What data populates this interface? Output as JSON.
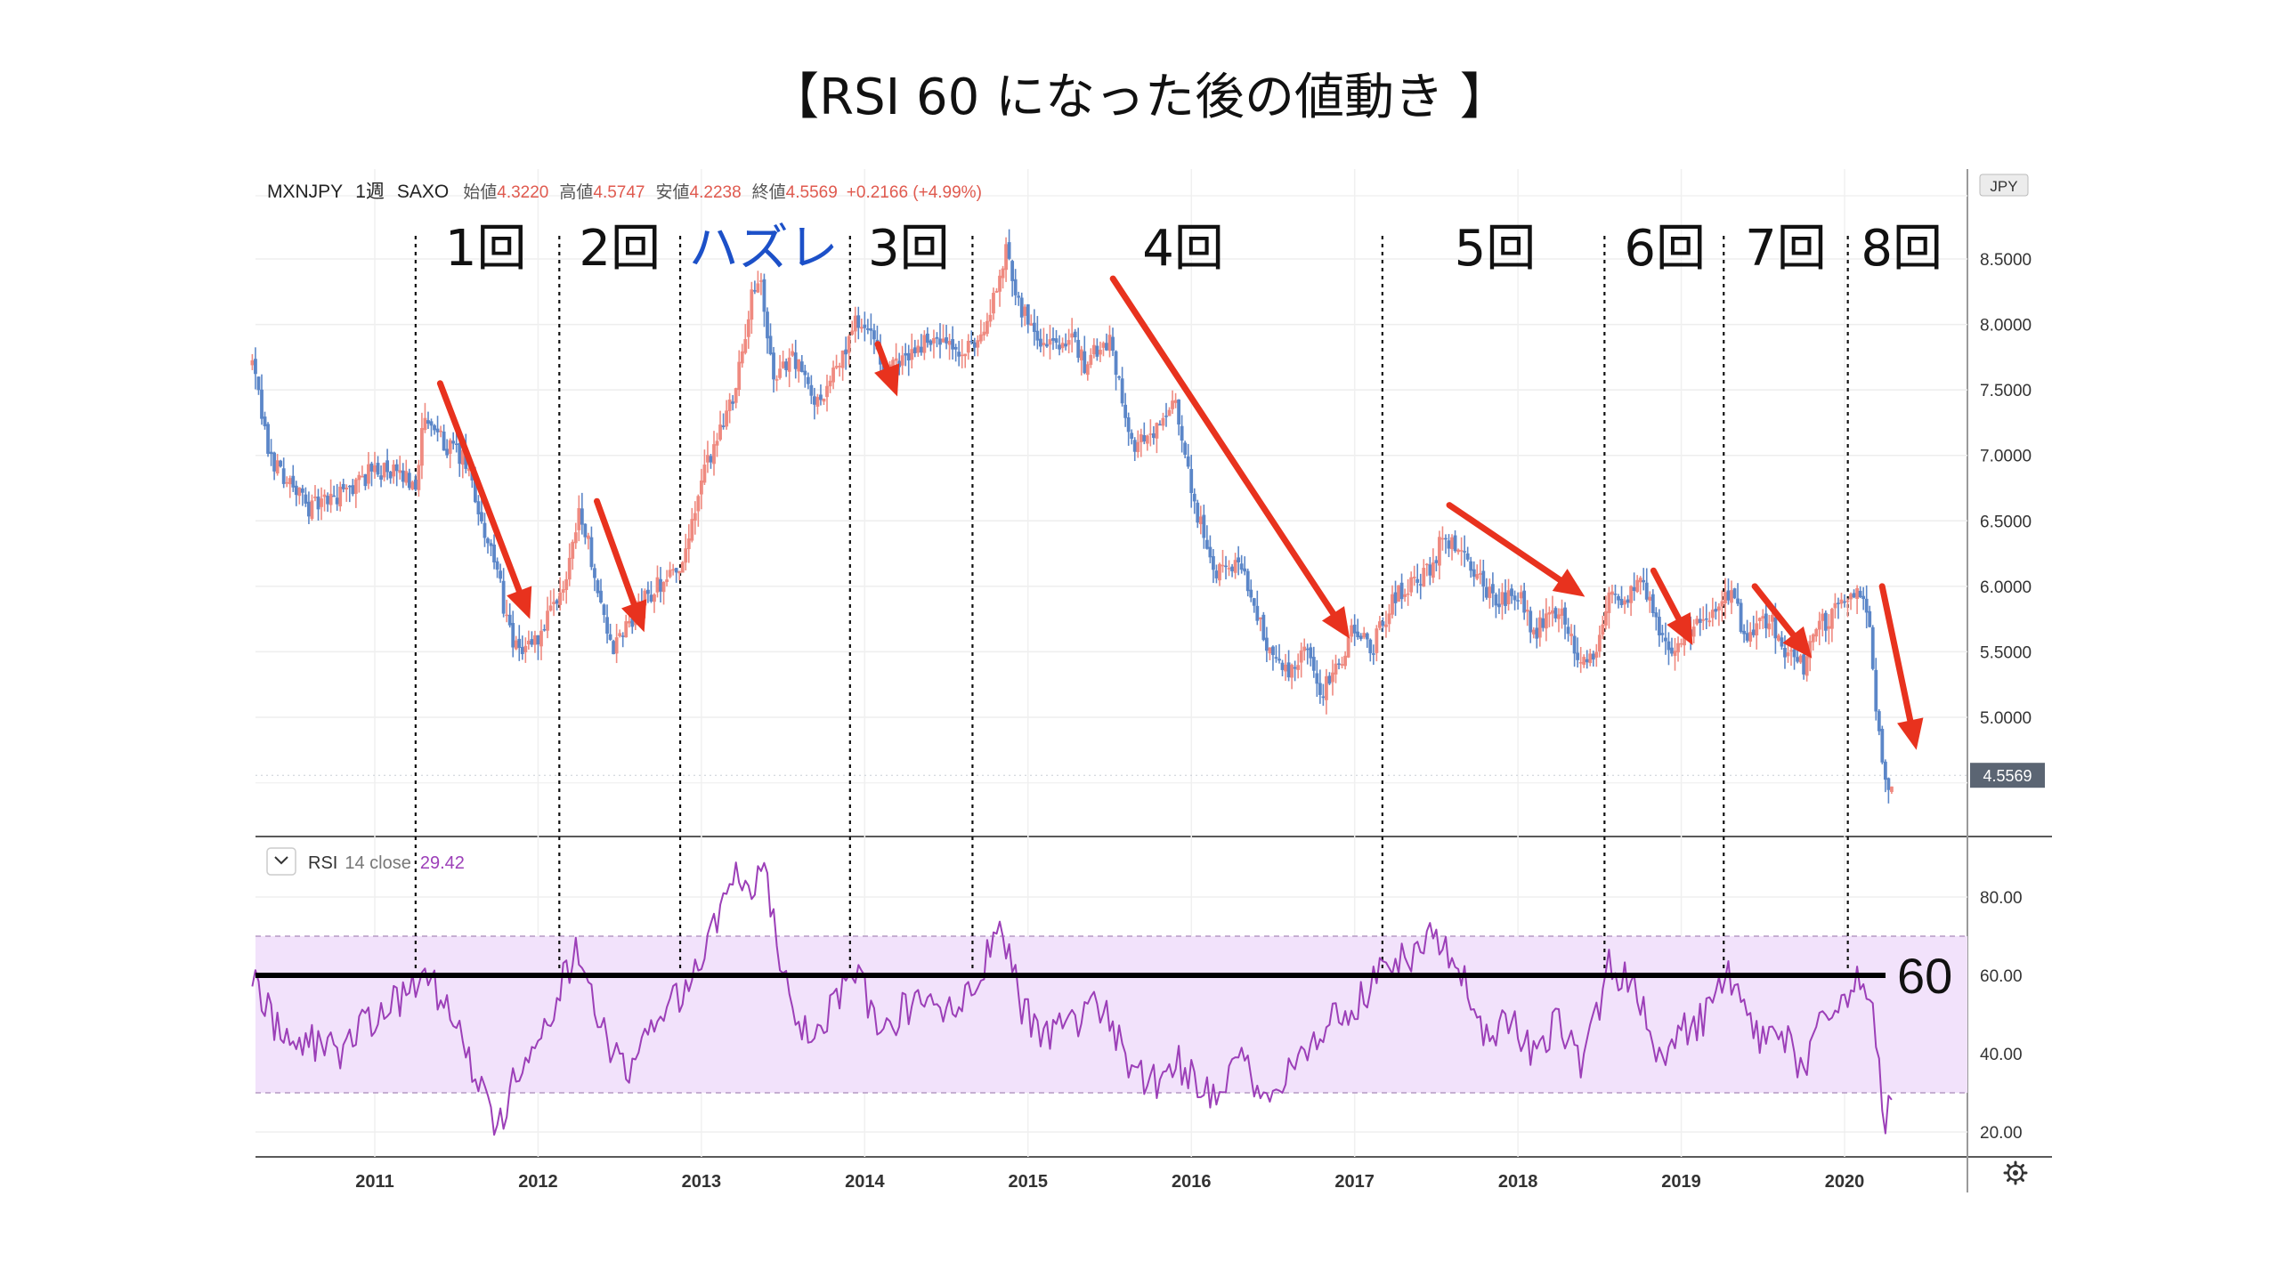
{
  "page_title": "【RSI 60 になった後の値動き 】",
  "header": {
    "symbol": "MXNJPY",
    "interval": "1週",
    "source": "SAXO",
    "open_label": "始値",
    "open": "4.3220",
    "high_label": "高値",
    "high": "4.5747",
    "low_label": "安値",
    "low": "4.2238",
    "close_label": "終値",
    "close": "4.5569",
    "change": "+0.2166 (+4.99%)"
  },
  "currency_badge": "JPY",
  "last_price_tag": "4.5569",
  "rsi_header": {
    "name": "RSI",
    "params": "14 close",
    "value": "29.42"
  },
  "line_label_60": "60",
  "colors": {
    "up": "#ef8a80",
    "down": "#5b86c8",
    "rsi": "#9c3fb8",
    "band": "#f2e2fb",
    "arrow": "#e8321e",
    "miss_label": "#1c50c8"
  },
  "chart_data": {
    "type": "candlestick",
    "x_ticks": [
      "2011",
      "2012",
      "2013",
      "2014",
      "2015",
      "2016",
      "2017",
      "2018",
      "2019",
      "2020"
    ],
    "y_ticks_price": [
      "5.0000",
      "5.5000",
      "6.0000",
      "6.5000",
      "7.0000",
      "7.5000",
      "8.0000",
      "8.5000"
    ],
    "y_ticks_rsi": [
      "20.00",
      "40.00",
      "60.00",
      "80.00"
    ],
    "price_range": [
      4.2,
      8.65
    ],
    "rsi_range": [
      16,
      90
    ],
    "rsi_band": [
      30,
      70
    ],
    "rsi_threshold": 60,
    "price_path": [
      [
        2010.25,
        7.7
      ],
      [
        2010.35,
        7.0
      ],
      [
        2010.6,
        6.6
      ],
      [
        2010.8,
        6.7
      ],
      [
        2011.0,
        6.9
      ],
      [
        2011.25,
        6.8
      ],
      [
        2011.3,
        7.25
      ],
      [
        2011.55,
        6.95
      ],
      [
        2011.75,
        6.1
      ],
      [
        2011.85,
        5.5
      ],
      [
        2012.0,
        5.6
      ],
      [
        2012.15,
        5.95
      ],
      [
        2012.25,
        6.6
      ],
      [
        2012.35,
        6.1
      ],
      [
        2012.45,
        5.5
      ],
      [
        2012.65,
        5.9
      ],
      [
        2012.8,
        6.1
      ],
      [
        2012.9,
        6.2
      ],
      [
        2013.0,
        6.8
      ],
      [
        2013.2,
        7.5
      ],
      [
        2013.3,
        8.15
      ],
      [
        2013.35,
        8.4
      ],
      [
        2013.45,
        7.5
      ],
      [
        2013.55,
        7.8
      ],
      [
        2013.7,
        7.4
      ],
      [
        2013.85,
        7.7
      ],
      [
        2013.95,
        8.05
      ],
      [
        2014.05,
        7.9
      ],
      [
        2014.1,
        7.6
      ],
      [
        2014.2,
        7.7
      ],
      [
        2014.4,
        7.9
      ],
      [
        2014.6,
        7.75
      ],
      [
        2014.7,
        7.9
      ],
      [
        2014.8,
        8.2
      ],
      [
        2014.87,
        8.6
      ],
      [
        2014.95,
        8.15
      ],
      [
        2015.1,
        7.85
      ],
      [
        2015.25,
        7.9
      ],
      [
        2015.35,
        7.7
      ],
      [
        2015.5,
        7.9
      ],
      [
        2015.65,
        7.05
      ],
      [
        2015.8,
        7.2
      ],
      [
        2015.9,
        7.4
      ],
      [
        2016.0,
        6.7
      ],
      [
        2016.15,
        6.1
      ],
      [
        2016.3,
        6.2
      ],
      [
        2016.45,
        5.6
      ],
      [
        2016.6,
        5.3
      ],
      [
        2016.7,
        5.5
      ],
      [
        2016.8,
        5.2
      ],
      [
        2016.9,
        5.4
      ],
      [
        2017.0,
        5.7
      ],
      [
        2017.1,
        5.5
      ],
      [
        2017.25,
        5.95
      ],
      [
        2017.45,
        6.1
      ],
      [
        2017.55,
        6.4
      ],
      [
        2017.7,
        6.15
      ],
      [
        2017.85,
        5.9
      ],
      [
        2018.0,
        5.95
      ],
      [
        2018.1,
        5.65
      ],
      [
        2018.25,
        5.85
      ],
      [
        2018.35,
        5.5
      ],
      [
        2018.45,
        5.4
      ],
      [
        2018.55,
        5.95
      ],
      [
        2018.65,
        5.9
      ],
      [
        2018.75,
        6.05
      ],
      [
        2018.85,
        5.7
      ],
      [
        2018.95,
        5.55
      ],
      [
        2019.1,
        5.75
      ],
      [
        2019.2,
        5.8
      ],
      [
        2019.3,
        5.95
      ],
      [
        2019.4,
        5.6
      ],
      [
        2019.55,
        5.75
      ],
      [
        2019.65,
        5.45
      ],
      [
        2019.75,
        5.4
      ],
      [
        2019.85,
        5.7
      ],
      [
        2020.0,
        5.85
      ],
      [
        2020.1,
        5.95
      ],
      [
        2020.15,
        5.7
      ],
      [
        2020.2,
        5.0
      ],
      [
        2020.25,
        4.45
      ],
      [
        2020.3,
        4.56
      ]
    ],
    "rsi_path": [
      [
        2010.25,
        62
      ],
      [
        2010.4,
        46
      ],
      [
        2010.6,
        43
      ],
      [
        2010.8,
        41
      ],
      [
        2010.95,
        48
      ],
      [
        2011.1,
        53
      ],
      [
        2011.25,
        57
      ],
      [
        2011.35,
        58
      ],
      [
        2011.5,
        48
      ],
      [
        2011.65,
        31
      ],
      [
        2011.75,
        21
      ],
      [
        2011.85,
        33
      ],
      [
        2012.0,
        42
      ],
      [
        2012.15,
        58
      ],
      [
        2012.22,
        66
      ],
      [
        2012.3,
        58
      ],
      [
        2012.42,
        42
      ],
      [
        2012.55,
        35
      ],
      [
        2012.7,
        46
      ],
      [
        2012.85,
        54
      ],
      [
        2012.95,
        60
      ],
      [
        2013.05,
        70
      ],
      [
        2013.2,
        84
      ],
      [
        2013.3,
        83
      ],
      [
        2013.38,
        87
      ],
      [
        2013.45,
        72
      ],
      [
        2013.55,
        50
      ],
      [
        2013.7,
        45
      ],
      [
        2013.85,
        56
      ],
      [
        2013.95,
        62
      ],
      [
        2014.1,
        44
      ],
      [
        2014.25,
        52
      ],
      [
        2014.5,
        50
      ],
      [
        2014.65,
        56
      ],
      [
        2014.75,
        65
      ],
      [
        2014.85,
        71
      ],
      [
        2014.95,
        53
      ],
      [
        2015.1,
        44
      ],
      [
        2015.3,
        48
      ],
      [
        2015.45,
        53
      ],
      [
        2015.6,
        38
      ],
      [
        2015.75,
        32
      ],
      [
        2015.9,
        38
      ],
      [
        2016.0,
        35
      ],
      [
        2016.15,
        29
      ],
      [
        2016.3,
        38
      ],
      [
        2016.45,
        27
      ],
      [
        2016.55,
        32
      ],
      [
        2016.7,
        39
      ],
      [
        2016.85,
        50
      ],
      [
        2017.0,
        52
      ],
      [
        2017.15,
        60
      ],
      [
        2017.3,
        64
      ],
      [
        2017.5,
        70
      ],
      [
        2017.65,
        60
      ],
      [
        2017.8,
        46
      ],
      [
        2017.95,
        48
      ],
      [
        2018.1,
        41
      ],
      [
        2018.25,
        48
      ],
      [
        2018.4,
        36
      ],
      [
        2018.55,
        62
      ],
      [
        2018.7,
        58
      ],
      [
        2018.85,
        40
      ],
      [
        2019.0,
        45
      ],
      [
        2019.15,
        50
      ],
      [
        2019.3,
        60
      ],
      [
        2019.45,
        44
      ],
      [
        2019.6,
        48
      ],
      [
        2019.75,
        34
      ],
      [
        2019.9,
        52
      ],
      [
        2020.05,
        58
      ],
      [
        2020.15,
        59
      ],
      [
        2020.2,
        40
      ],
      [
        2020.25,
        24
      ],
      [
        2020.3,
        29.4
      ]
    ],
    "reference_lines_years": [
      2011.25,
      2012.13,
      2012.87,
      2013.91,
      2014.66,
      2017.17,
      2018.53,
      2019.26,
      2020.02
    ],
    "episode_labels": [
      {
        "text": "1回",
        "x": 2011.68,
        "color": "#111111"
      },
      {
        "text": "2回",
        "x": 2012.5,
        "color": "#111111"
      },
      {
        "text": "ハズレ",
        "x": 2013.38,
        "color": "#1c50c8"
      },
      {
        "text": "3回",
        "x": 2014.27,
        "color": "#111111"
      },
      {
        "text": "4回",
        "x": 2015.95,
        "color": "#111111"
      },
      {
        "text": "5回",
        "x": 2017.86,
        "color": "#111111"
      },
      {
        "text": "6回",
        "x": 2018.9,
        "color": "#111111"
      },
      {
        "text": "7回",
        "x": 2019.64,
        "color": "#111111"
      },
      {
        "text": "8回",
        "x": 2020.35,
        "color": "#111111"
      }
    ],
    "arrows": [
      {
        "x1": 2011.4,
        "y1": 7.55,
        "x2": 2011.95,
        "y2": 5.75
      },
      {
        "x1": 2012.36,
        "y1": 6.65,
        "x2": 2012.65,
        "y2": 5.65
      },
      {
        "x1": 2014.08,
        "y1": 7.85,
        "x2": 2014.2,
        "y2": 7.45
      },
      {
        "x1": 2015.52,
        "y1": 8.35,
        "x2": 2016.97,
        "y2": 5.6
      },
      {
        "x1": 2017.58,
        "y1": 6.62,
        "x2": 2018.41,
        "y2": 5.92
      },
      {
        "x1": 2018.83,
        "y1": 6.12,
        "x2": 2019.07,
        "y2": 5.55
      },
      {
        "x1": 2019.45,
        "y1": 6.0,
        "x2": 2019.8,
        "y2": 5.45
      },
      {
        "x1": 2020.23,
        "y1": 6.0,
        "x2": 2020.44,
        "y2": 4.75
      }
    ]
  }
}
